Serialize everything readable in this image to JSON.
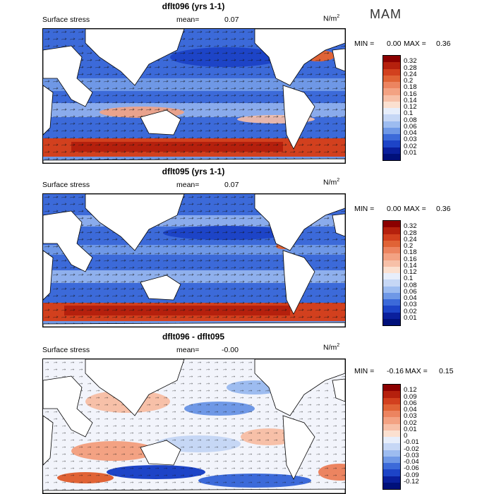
{
  "season": "MAM",
  "units": "N/m",
  "units_exp": "2",
  "panels": [
    {
      "title": "dflt096 (yrs 1-1)",
      "field": "Surface stress",
      "mean_label": "mean=",
      "mean_value": "0.07",
      "min_label": "MIN =",
      "min_value": "0.00",
      "max_label": "MAX =",
      "max_value": "0.36",
      "levels": [
        "0.32",
        "0.28",
        "0.24",
        "0.2",
        "0.18",
        "0.16",
        "0.14",
        "0.12",
        "0.1",
        "0.08",
        "0.06",
        "0.04",
        "0.03",
        "0.02",
        "0.01"
      ],
      "colors": [
        "#8b0000",
        "#b5200d",
        "#d2401e",
        "#e06336",
        "#ec8460",
        "#f3a283",
        "#f7c0a8",
        "#fbe0d0",
        "#e7eefb",
        "#c6d7f5",
        "#9dbcf0",
        "#6f98e6",
        "#3c6ad9",
        "#1d44c7",
        "#0a1f9c",
        "#00107a"
      ]
    },
    {
      "title": "dflt095 (yrs 1-1)",
      "field": "Surface stress",
      "mean_label": "mean=",
      "mean_value": "0.07",
      "min_label": "MIN =",
      "min_value": "0.00",
      "max_label": "MAX =",
      "max_value": "0.36",
      "levels": [
        "0.32",
        "0.28",
        "0.24",
        "0.2",
        "0.18",
        "0.16",
        "0.14",
        "0.12",
        "0.1",
        "0.08",
        "0.06",
        "0.04",
        "0.03",
        "0.02",
        "0.01"
      ],
      "colors": [
        "#8b0000",
        "#b5200d",
        "#d2401e",
        "#e06336",
        "#ec8460",
        "#f3a283",
        "#f7c0a8",
        "#fbe0d0",
        "#e7eefb",
        "#c6d7f5",
        "#9dbcf0",
        "#6f98e6",
        "#3c6ad9",
        "#1d44c7",
        "#0a1f9c",
        "#00107a"
      ]
    },
    {
      "title": "dflt096 - dflt095",
      "field": "Surface stress",
      "mean_label": "mean=",
      "mean_value": "-0.00",
      "min_label": "MIN =",
      "min_value": "-0.16",
      "max_label": "MAX =",
      "max_value": "0.15",
      "levels": [
        "0.12",
        "0.09",
        "0.06",
        "0.04",
        "0.03",
        "0.02",
        "0.01",
        "0",
        "-0.01",
        "-0.02",
        "-0.03",
        "-0.04",
        "-0.06",
        "-0.09",
        "-0.12"
      ],
      "colors": [
        "#8b0000",
        "#b5200d",
        "#d2401e",
        "#e06336",
        "#ec8460",
        "#f3a283",
        "#f7c0a8",
        "#fbe0d0",
        "#e7eefb",
        "#c6d7f5",
        "#9dbcf0",
        "#6f98e6",
        "#3c6ad9",
        "#1d44c7",
        "#0a1f9c",
        "#00107a"
      ]
    }
  ]
}
